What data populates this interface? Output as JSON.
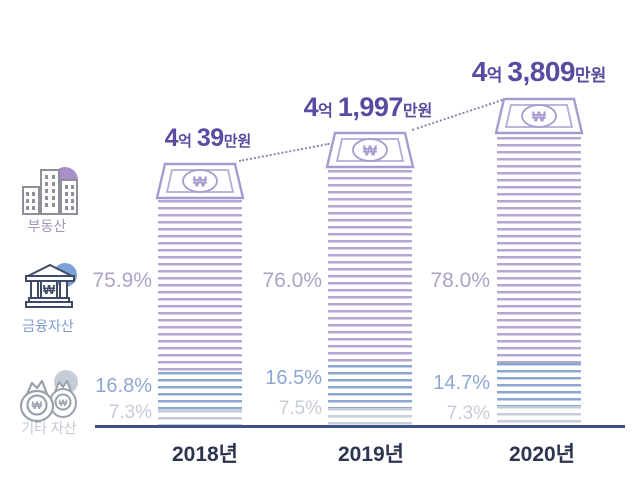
{
  "chart_data": {
    "type": "bar",
    "title": "",
    "categories": [
      "2018년",
      "2019년",
      "2020년"
    ],
    "totals": [
      "4억 39만원",
      "4억 1,997만원",
      "4억 3,809만원"
    ],
    "series": [
      {
        "name": "부동산",
        "values": [
          75.9,
          76.0,
          78.0
        ],
        "color": "#b4a6d1"
      },
      {
        "name": "금융자산",
        "values": [
          16.8,
          16.5,
          14.7
        ],
        "color": "#8ba6d1"
      },
      {
        "name": "기타 자산",
        "values": [
          7.3,
          7.5,
          7.3
        ],
        "color": "#c6ccd8"
      }
    ],
    "unit": "%",
    "ylim": [
      0,
      100
    ],
    "grid": false,
    "legend_position": "left",
    "annotations": [
      "dotted trend line connecting banknote tops"
    ]
  },
  "columns": [
    {
      "year": "2018년",
      "total": {
        "num1": "4",
        "unit1": "억",
        "num2": "39",
        "unit2": "만원"
      },
      "percent_labels": [
        "75.9%",
        "16.8%",
        "7.3%"
      ]
    },
    {
      "year": "2019년",
      "total": {
        "num1": "4",
        "unit1": "억",
        "num2": "1,997",
        "unit2": "만원"
      },
      "percent_labels": [
        "76.0%",
        "16.5%",
        "7.5%"
      ]
    },
    {
      "year": "2020년",
      "total": {
        "num1": "4",
        "unit1": "억",
        "num2": "3,809",
        "unit2": "만원"
      },
      "percent_labels": [
        "78.0%",
        "14.7%",
        "7.3%"
      ]
    }
  ],
  "legend": {
    "items": [
      {
        "label": "부동산",
        "icon": "building-icon",
        "accent_color": "#a98fc9"
      },
      {
        "label": "금융자산",
        "icon": "bank-icon",
        "accent_color": "#7ba1d8"
      },
      {
        "label": "기타 자산",
        "icon": "money-bags-icon",
        "accent_color": "#c6cdd8"
      }
    ]
  },
  "icons": {
    "banknote": "won-banknote-icon",
    "currency_symbol": "₩"
  },
  "colors": {
    "value_label": "#5b4aa0",
    "axis_line": "#3f4f88",
    "year_label": "#2c3550",
    "dotted_line": "#8b82a8",
    "stripe_purple": "#b4a6d1",
    "stripe_blue": "#8ba6d1",
    "stripe_gray": "#c6ccd8"
  }
}
